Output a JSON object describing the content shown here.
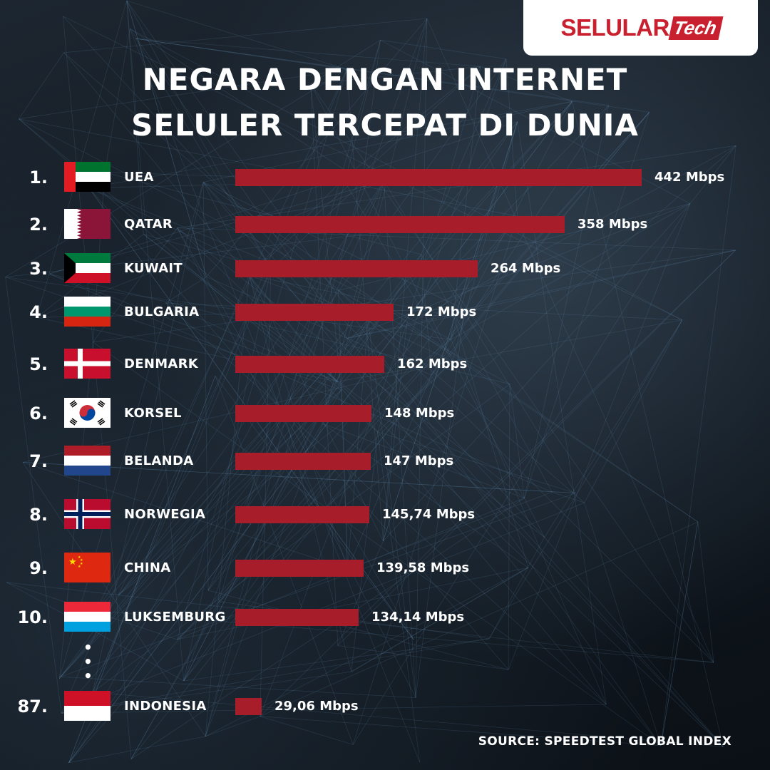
{
  "brand": {
    "name": "SELULAR",
    "suffix": "Tech",
    "color": "#c8202f"
  },
  "title": {
    "line1": "NEGARA DENGAN INTERNET",
    "line2": "SELULER TERCEPAT DI DUNIA"
  },
  "source": "SOURCE: SPEEDTEST GLOBAL INDEX",
  "ellipsis": "⋮",
  "bar_color": "#a71d2a",
  "chart_data": {
    "type": "bar",
    "orientation": "horizontal",
    "unit": "Mbps",
    "xlim": [
      0,
      442
    ],
    "grid": false,
    "legend": "none",
    "rows": [
      {
        "rank": "1.",
        "country": "UEA",
        "flag": "uae-flag",
        "value": 442,
        "label": "442 Mbps"
      },
      {
        "rank": "2.",
        "country": "QATAR",
        "flag": "qatar-flag",
        "value": 358,
        "label": "358 Mbps"
      },
      {
        "rank": "3.",
        "country": "KUWAIT",
        "flag": "kuwait-flag",
        "value": 264,
        "label": "264 Mbps"
      },
      {
        "rank": "4.",
        "country": "BULGARIA",
        "flag": "bulgaria-flag",
        "value": 172,
        "label": "172 Mbps"
      },
      {
        "rank": "5.",
        "country": "DENMARK",
        "flag": "denmark-flag",
        "value": 162,
        "label": "162 Mbps"
      },
      {
        "rank": "6.",
        "country": "KORSEL",
        "flag": "south-korea-flag",
        "value": 148,
        "label": "148 Mbps"
      },
      {
        "rank": "7.",
        "country": "BELANDA",
        "flag": "netherlands-flag",
        "value": 147,
        "label": "147 Mbps"
      },
      {
        "rank": "8.",
        "country": "NORWEGIA",
        "flag": "norway-flag",
        "value": 145.74,
        "label": "145,74 Mbps"
      },
      {
        "rank": "9.",
        "country": "CHINA",
        "flag": "china-flag",
        "value": 139.58,
        "label": "139,58 Mbps"
      },
      {
        "rank": "10.",
        "country": "LUKSEMBURG",
        "flag": "luxembourg-flag",
        "value": 134.14,
        "label": "134,14 Mbps"
      },
      {
        "rank": "87.",
        "country": "INDONESIA",
        "flag": "indonesia-flag",
        "value": 29.06,
        "label": "29,06 Mbps"
      }
    ]
  }
}
